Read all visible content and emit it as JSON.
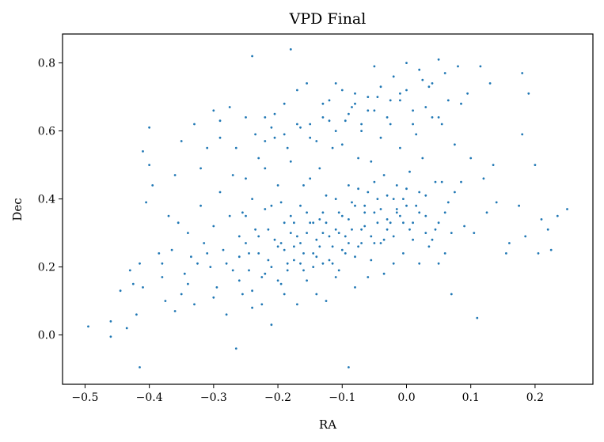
{
  "chart_data": {
    "type": "scatter",
    "title": "VPD Final",
    "xlabel": "RA",
    "ylabel": "Dec",
    "xlim": [
      -0.535,
      0.29
    ],
    "ylim": [
      -0.145,
      0.885
    ],
    "xticks": [
      -0.5,
      -0.4,
      -0.3,
      -0.2,
      -0.1,
      0.0,
      0.1,
      0.2
    ],
    "xtick_labels": [
      "−0.5",
      "−0.4",
      "−0.3",
      "−0.2",
      "−0.1",
      "0.0",
      "0.1",
      "0.2"
    ],
    "yticks": [
      0.0,
      0.2,
      0.4,
      0.6,
      0.8
    ],
    "ytick_labels": [
      "0.0",
      "0.2",
      "0.4",
      "0.6",
      "0.8"
    ],
    "grid": false,
    "marker_color": "#1f77b4",
    "points": [
      [
        -0.495,
        0.025
      ],
      [
        -0.46,
        -0.005
      ],
      [
        -0.46,
        0.04
      ],
      [
        -0.445,
        0.13
      ],
      [
        -0.435,
        0.02
      ],
      [
        -0.43,
        0.19
      ],
      [
        -0.425,
        0.15
      ],
      [
        -0.42,
        0.06
      ],
      [
        -0.415,
        0.21
      ],
      [
        -0.41,
        0.14
      ],
      [
        -0.415,
        -0.095
      ],
      [
        -0.405,
        0.39
      ],
      [
        -0.4,
        0.61
      ],
      [
        -0.395,
        0.44
      ],
      [
        -0.385,
        0.24
      ],
      [
        -0.38,
        0.17
      ],
      [
        -0.375,
        0.1
      ],
      [
        -0.37,
        0.35
      ],
      [
        -0.365,
        0.25
      ],
      [
        -0.36,
        0.47
      ],
      [
        -0.355,
        0.33
      ],
      [
        -0.35,
        0.12
      ],
      [
        -0.345,
        0.18
      ],
      [
        -0.34,
        0.3
      ],
      [
        -0.335,
        0.23
      ],
      [
        -0.33,
        0.62
      ],
      [
        -0.33,
        0.09
      ],
      [
        -0.325,
        0.21
      ],
      [
        -0.32,
        0.38
      ],
      [
        -0.315,
        0.27
      ],
      [
        -0.31,
        0.55
      ],
      [
        -0.305,
        0.2
      ],
      [
        -0.3,
        0.66
      ],
      [
        -0.3,
        0.32
      ],
      [
        -0.295,
        0.14
      ],
      [
        -0.29,
        0.58
      ],
      [
        -0.29,
        0.42
      ],
      [
        -0.285,
        0.25
      ],
      [
        -0.28,
        0.06
      ],
      [
        -0.275,
        0.67
      ],
      [
        -0.275,
        0.35
      ],
      [
        -0.27,
        0.19
      ],
      [
        -0.265,
        -0.04
      ],
      [
        -0.265,
        0.55
      ],
      [
        -0.26,
        0.29
      ],
      [
        -0.255,
        0.12
      ],
      [
        -0.25,
        0.64
      ],
      [
        -0.25,
        0.46
      ],
      [
        -0.245,
        0.24
      ],
      [
        -0.24,
        0.82
      ],
      [
        -0.24,
        0.08
      ],
      [
        -0.235,
        0.31
      ],
      [
        -0.23,
        0.52
      ],
      [
        -0.225,
        0.17
      ],
      [
        -0.22,
        0.37
      ],
      [
        -0.22,
        0.64
      ],
      [
        -0.215,
        0.22
      ],
      [
        -0.21,
        0.03
      ],
      [
        -0.205,
        0.58
      ],
      [
        -0.205,
        0.28
      ],
      [
        -0.2,
        0.44
      ],
      [
        -0.195,
        0.15
      ],
      [
        -0.19,
        0.68
      ],
      [
        -0.19,
        0.33
      ],
      [
        -0.185,
        0.21
      ],
      [
        -0.18,
        0.84
      ],
      [
        -0.18,
        0.51
      ],
      [
        -0.175,
        0.26
      ],
      [
        -0.17,
        0.09
      ],
      [
        -0.165,
        0.61
      ],
      [
        -0.165,
        0.38
      ],
      [
        -0.16,
        0.19
      ],
      [
        -0.155,
        0.74
      ],
      [
        -0.155,
        0.3
      ],
      [
        -0.15,
        0.46
      ],
      [
        -0.145,
        0.24
      ],
      [
        -0.14,
        0.57
      ],
      [
        -0.14,
        0.12
      ],
      [
        -0.135,
        0.34
      ],
      [
        -0.13,
        0.68
      ],
      [
        -0.13,
        0.21
      ],
      [
        -0.125,
        0.41
      ],
      [
        -0.12,
        0.29
      ],
      [
        -0.115,
        0.55
      ],
      [
        -0.11,
        0.74
      ],
      [
        -0.11,
        0.17
      ],
      [
        -0.105,
        0.36
      ],
      [
        -0.1,
        0.25
      ],
      [
        -0.095,
        0.63
      ],
      [
        -0.09,
        -0.095
      ],
      [
        -0.09,
        0.44
      ],
      [
        -0.085,
        0.31
      ],
      [
        -0.08,
        0.71
      ],
      [
        -0.08,
        0.14
      ],
      [
        -0.075,
        0.52
      ],
      [
        -0.07,
        0.27
      ],
      [
        -0.065,
        0.38
      ],
      [
        -0.06,
        0.66
      ],
      [
        -0.055,
        0.22
      ],
      [
        -0.05,
        0.79
      ],
      [
        -0.05,
        0.45
      ],
      [
        -0.045,
        0.33
      ],
      [
        -0.04,
        0.58
      ],
      [
        -0.035,
        0.18
      ],
      [
        -0.03,
        0.41
      ],
      [
        -0.025,
        0.69
      ],
      [
        -0.02,
        0.29
      ],
      [
        -0.015,
        0.36
      ],
      [
        -0.01,
        0.55
      ],
      [
        -0.005,
        0.24
      ],
      [
        0.0,
        0.8
      ],
      [
        0.0,
        0.43
      ],
      [
        0.005,
        0.31
      ],
      [
        0.01,
        0.66
      ],
      [
        0.015,
        0.38
      ],
      [
        0.02,
        0.21
      ],
      [
        0.025,
        0.52
      ],
      [
        0.03,
        0.35
      ],
      [
        0.035,
        0.73
      ],
      [
        0.04,
        0.28
      ],
      [
        0.045,
        0.45
      ],
      [
        0.05,
        0.81
      ],
      [
        0.05,
        0.33
      ],
      [
        0.055,
        0.62
      ],
      [
        0.06,
        0.24
      ],
      [
        0.065,
        0.39
      ],
      [
        0.07,
        0.12
      ],
      [
        0.075,
        0.56
      ],
      [
        0.08,
        0.79
      ],
      [
        0.085,
        0.45
      ],
      [
        0.09,
        0.32
      ],
      [
        0.095,
        0.71
      ],
      [
        0.1,
        0.52
      ],
      [
        0.105,
        0.3
      ],
      [
        0.11,
        0.05
      ],
      [
        0.115,
        0.79
      ],
      [
        0.12,
        0.46
      ],
      [
        0.125,
        0.36
      ],
      [
        0.13,
        0.74
      ],
      [
        0.135,
        0.5
      ],
      [
        0.14,
        0.39
      ],
      [
        0.155,
        0.24
      ],
      [
        0.16,
        0.27
      ],
      [
        0.175,
        0.38
      ],
      [
        0.18,
        0.59
      ],
      [
        0.18,
        0.77
      ],
      [
        0.185,
        0.29
      ],
      [
        0.19,
        0.71
      ],
      [
        0.2,
        0.5
      ],
      [
        0.205,
        0.24
      ],
      [
        0.21,
        0.34
      ],
      [
        0.22,
        0.31
      ],
      [
        0.225,
        0.25
      ],
      [
        0.235,
        0.35
      ],
      [
        0.25,
        0.37
      ],
      [
        -0.41,
        0.54
      ],
      [
        -0.4,
        0.5
      ],
      [
        -0.38,
        0.21
      ],
      [
        -0.36,
        0.07
      ],
      [
        -0.35,
        0.57
      ],
      [
        -0.34,
        0.15
      ],
      [
        -0.32,
        0.49
      ],
      [
        -0.31,
        0.24
      ],
      [
        -0.3,
        0.11
      ],
      [
        -0.29,
        0.63
      ],
      [
        -0.28,
        0.21
      ],
      [
        -0.27,
        0.47
      ],
      [
        -0.26,
        0.16
      ],
      [
        -0.255,
        0.36
      ],
      [
        -0.25,
        0.27
      ],
      [
        -0.245,
        0.19
      ],
      [
        -0.24,
        0.4
      ],
      [
        -0.235,
        0.59
      ],
      [
        -0.23,
        0.29
      ],
      [
        -0.225,
        0.09
      ],
      [
        -0.22,
        0.49
      ],
      [
        -0.215,
        0.31
      ],
      [
        -0.21,
        0.2
      ],
      [
        -0.205,
        0.65
      ],
      [
        -0.2,
        0.26
      ],
      [
        -0.195,
        0.39
      ],
      [
        -0.19,
        0.12
      ],
      [
        -0.185,
        0.55
      ],
      [
        -0.18,
        0.3
      ],
      [
        -0.175,
        0.22
      ],
      [
        -0.17,
        0.72
      ],
      [
        -0.165,
        0.27
      ],
      [
        -0.16,
        0.44
      ],
      [
        -0.155,
        0.16
      ],
      [
        -0.15,
        0.62
      ],
      [
        -0.145,
        0.33
      ],
      [
        -0.14,
        0.23
      ],
      [
        -0.135,
        0.49
      ],
      [
        -0.13,
        0.3
      ],
      [
        -0.125,
        0.1
      ],
      [
        -0.12,
        0.63
      ],
      [
        -0.115,
        0.26
      ],
      [
        -0.11,
        0.4
      ],
      [
        -0.105,
        0.19
      ],
      [
        -0.1,
        0.56
      ],
      [
        -0.095,
        0.29
      ],
      [
        -0.09,
        0.34
      ],
      [
        -0.085,
        0.67
      ],
      [
        -0.08,
        0.23
      ],
      [
        -0.075,
        0.43
      ],
      [
        -0.07,
        0.6
      ],
      [
        -0.065,
        0.32
      ],
      [
        -0.06,
        0.17
      ],
      [
        -0.055,
        0.51
      ],
      [
        -0.05,
        0.36
      ],
      [
        -0.045,
        0.7
      ],
      [
        -0.04,
        0.27
      ],
      [
        -0.035,
        0.47
      ],
      [
        -0.03,
        0.34
      ],
      [
        -0.025,
        0.62
      ],
      [
        -0.02,
        0.21
      ],
      [
        -0.015,
        0.44
      ],
      [
        -0.01,
        0.71
      ],
      [
        -0.005,
        0.33
      ],
      [
        0.005,
        0.48
      ],
      [
        0.01,
        0.28
      ],
      [
        0.015,
        0.59
      ],
      [
        0.02,
        0.36
      ],
      [
        0.025,
        0.75
      ],
      [
        0.03,
        0.41
      ],
      [
        0.035,
        0.26
      ],
      [
        0.04,
        0.64
      ],
      [
        0.045,
        0.31
      ],
      [
        0.05,
        0.21
      ],
      [
        0.055,
        0.45
      ],
      [
        0.06,
        0.36
      ],
      [
        0.065,
        0.69
      ],
      [
        0.07,
        0.3
      ],
      [
        0.075,
        0.42
      ],
      [
        0.085,
        0.68
      ],
      [
        -0.26,
        0.23
      ],
      [
        -0.25,
        0.35
      ],
      [
        -0.24,
        0.13
      ],
      [
        -0.23,
        0.24
      ],
      [
        -0.22,
        0.18
      ],
      [
        -0.21,
        0.38
      ],
      [
        -0.2,
        0.16
      ],
      [
        -0.19,
        0.25
      ],
      [
        -0.18,
        0.35
      ],
      [
        -0.17,
        0.29
      ],
      [
        -0.16,
        0.24
      ],
      [
        -0.15,
        0.33
      ],
      [
        -0.14,
        0.28
      ],
      [
        -0.13,
        0.36
      ],
      [
        -0.12,
        0.22
      ],
      [
        -0.11,
        0.31
      ],
      [
        -0.1,
        0.35
      ],
      [
        -0.09,
        0.27
      ],
      [
        -0.08,
        0.38
      ],
      [
        -0.07,
        0.31
      ],
      [
        -0.06,
        0.42
      ],
      [
        -0.05,
        0.27
      ],
      [
        -0.04,
        0.37
      ],
      [
        -0.03,
        0.31
      ],
      [
        -0.02,
        0.4
      ],
      [
        -0.01,
        0.35
      ],
      [
        0.0,
        0.38
      ],
      [
        0.01,
        0.33
      ],
      [
        0.02,
        0.42
      ],
      [
        0.03,
        0.3
      ],
      [
        -0.195,
        0.27
      ],
      [
        -0.185,
        0.19
      ],
      [
        -0.175,
        0.33
      ],
      [
        -0.165,
        0.21
      ],
      [
        -0.155,
        0.36
      ],
      [
        -0.145,
        0.2
      ],
      [
        -0.135,
        0.26
      ],
      [
        -0.125,
        0.33
      ],
      [
        -0.115,
        0.21
      ],
      [
        -0.105,
        0.3
      ],
      [
        -0.095,
        0.24
      ],
      [
        -0.085,
        0.39
      ],
      [
        -0.075,
        0.26
      ],
      [
        -0.065,
        0.36
      ],
      [
        -0.055,
        0.29
      ],
      [
        -0.045,
        0.4
      ],
      [
        -0.035,
        0.28
      ],
      [
        -0.025,
        0.33
      ],
      [
        -0.015,
        0.37
      ],
      [
        -0.005,
        0.4
      ],
      [
        -0.22,
        0.57
      ],
      [
        -0.21,
        0.61
      ],
      [
        -0.19,
        0.59
      ],
      [
        -0.17,
        0.62
      ],
      [
        -0.15,
        0.58
      ],
      [
        -0.13,
        0.64
      ],
      [
        -0.11,
        0.6
      ],
      [
        -0.09,
        0.65
      ],
      [
        -0.07,
        0.62
      ],
      [
        -0.05,
        0.66
      ],
      [
        -0.03,
        0.64
      ],
      [
        -0.01,
        0.69
      ],
      [
        0.01,
        0.62
      ],
      [
        0.03,
        0.67
      ],
      [
        0.05,
        0.64
      ],
      [
        -0.12,
        0.69
      ],
      [
        -0.1,
        0.72
      ],
      [
        -0.08,
        0.68
      ],
      [
        -0.06,
        0.7
      ],
      [
        -0.04,
        0.73
      ],
      [
        -0.02,
        0.76
      ],
      [
        0.0,
        0.72
      ],
      [
        0.02,
        0.78
      ],
      [
        0.04,
        0.74
      ],
      [
        0.06,
        0.77
      ]
    ]
  }
}
